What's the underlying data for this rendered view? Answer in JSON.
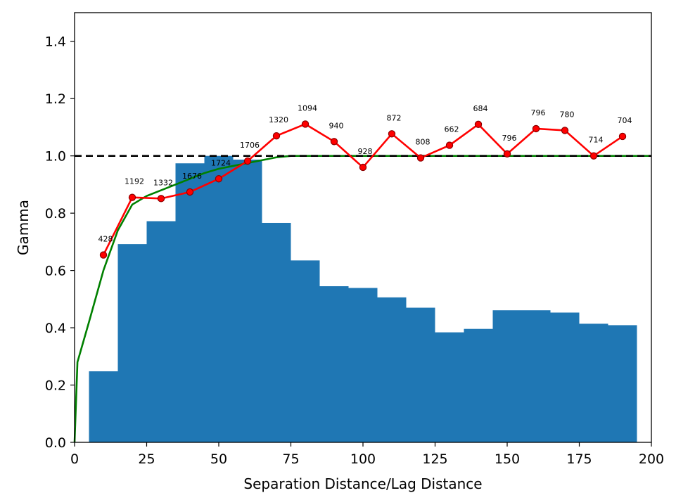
{
  "chart_data": {
    "type": "combo",
    "xlabel": "Separation Distance/Lag Distance",
    "ylabel": "Gamma",
    "xlim": [
      0,
      200
    ],
    "ylim": [
      0,
      1.5
    ],
    "xticks": [
      "0",
      "25",
      "50",
      "75",
      "100",
      "125",
      "150",
      "175",
      "200"
    ],
    "yticks": [
      "0.0",
      "0.2",
      "0.4",
      "0.6",
      "0.8",
      "1.0",
      "1.2",
      "1.4"
    ],
    "grid": false,
    "bars": {
      "x": [
        10,
        20,
        30,
        40,
        50,
        60,
        70,
        80,
        90,
        100,
        110,
        120,
        130,
        140,
        150,
        160,
        170,
        180,
        190
      ],
      "values": [
        0.248,
        0.692,
        0.772,
        0.974,
        1.0,
        0.987,
        0.766,
        0.635,
        0.545,
        0.539,
        0.506,
        0.47,
        0.384,
        0.396,
        0.461,
        0.461,
        0.453,
        0.414,
        0.409
      ],
      "color": "#1f77b4"
    },
    "experimental": {
      "x": [
        10,
        20,
        30,
        40,
        50,
        60,
        70,
        80,
        90,
        100,
        110,
        120,
        130,
        140,
        150,
        160,
        170,
        180,
        190
      ],
      "values": [
        0.654,
        0.855,
        0.851,
        0.874,
        0.92,
        0.982,
        1.07,
        1.111,
        1.05,
        0.96,
        1.077,
        0.993,
        1.037,
        1.11,
        1.007,
        1.095,
        1.089,
        1.0,
        1.068
      ],
      "pair_counts": [
        "428",
        "1192",
        "1332",
        "1676",
        "1724",
        "1706",
        "1320",
        "1094",
        "940",
        "928",
        "872",
        "808",
        "662",
        "684",
        "796",
        "796",
        "780",
        "714",
        "704"
      ],
      "color": "#ff0000",
      "marker_edge": "#8b0000"
    },
    "model": {
      "x": [
        0,
        1,
        5,
        10,
        15,
        20,
        25,
        30,
        35,
        40,
        45,
        50,
        55,
        60,
        65,
        70,
        75,
        80,
        90,
        100,
        200
      ],
      "values": [
        0.0,
        0.28,
        0.42,
        0.6,
        0.74,
        0.83,
        0.86,
        0.88,
        0.9,
        0.92,
        0.94,
        0.955,
        0.965,
        0.975,
        0.985,
        0.995,
        1.0,
        1.0,
        1.0,
        1.0,
        1.0
      ],
      "color": "#008000"
    },
    "reference_line": {
      "y": 1.0,
      "style": "dashed",
      "color": "#000000"
    }
  }
}
